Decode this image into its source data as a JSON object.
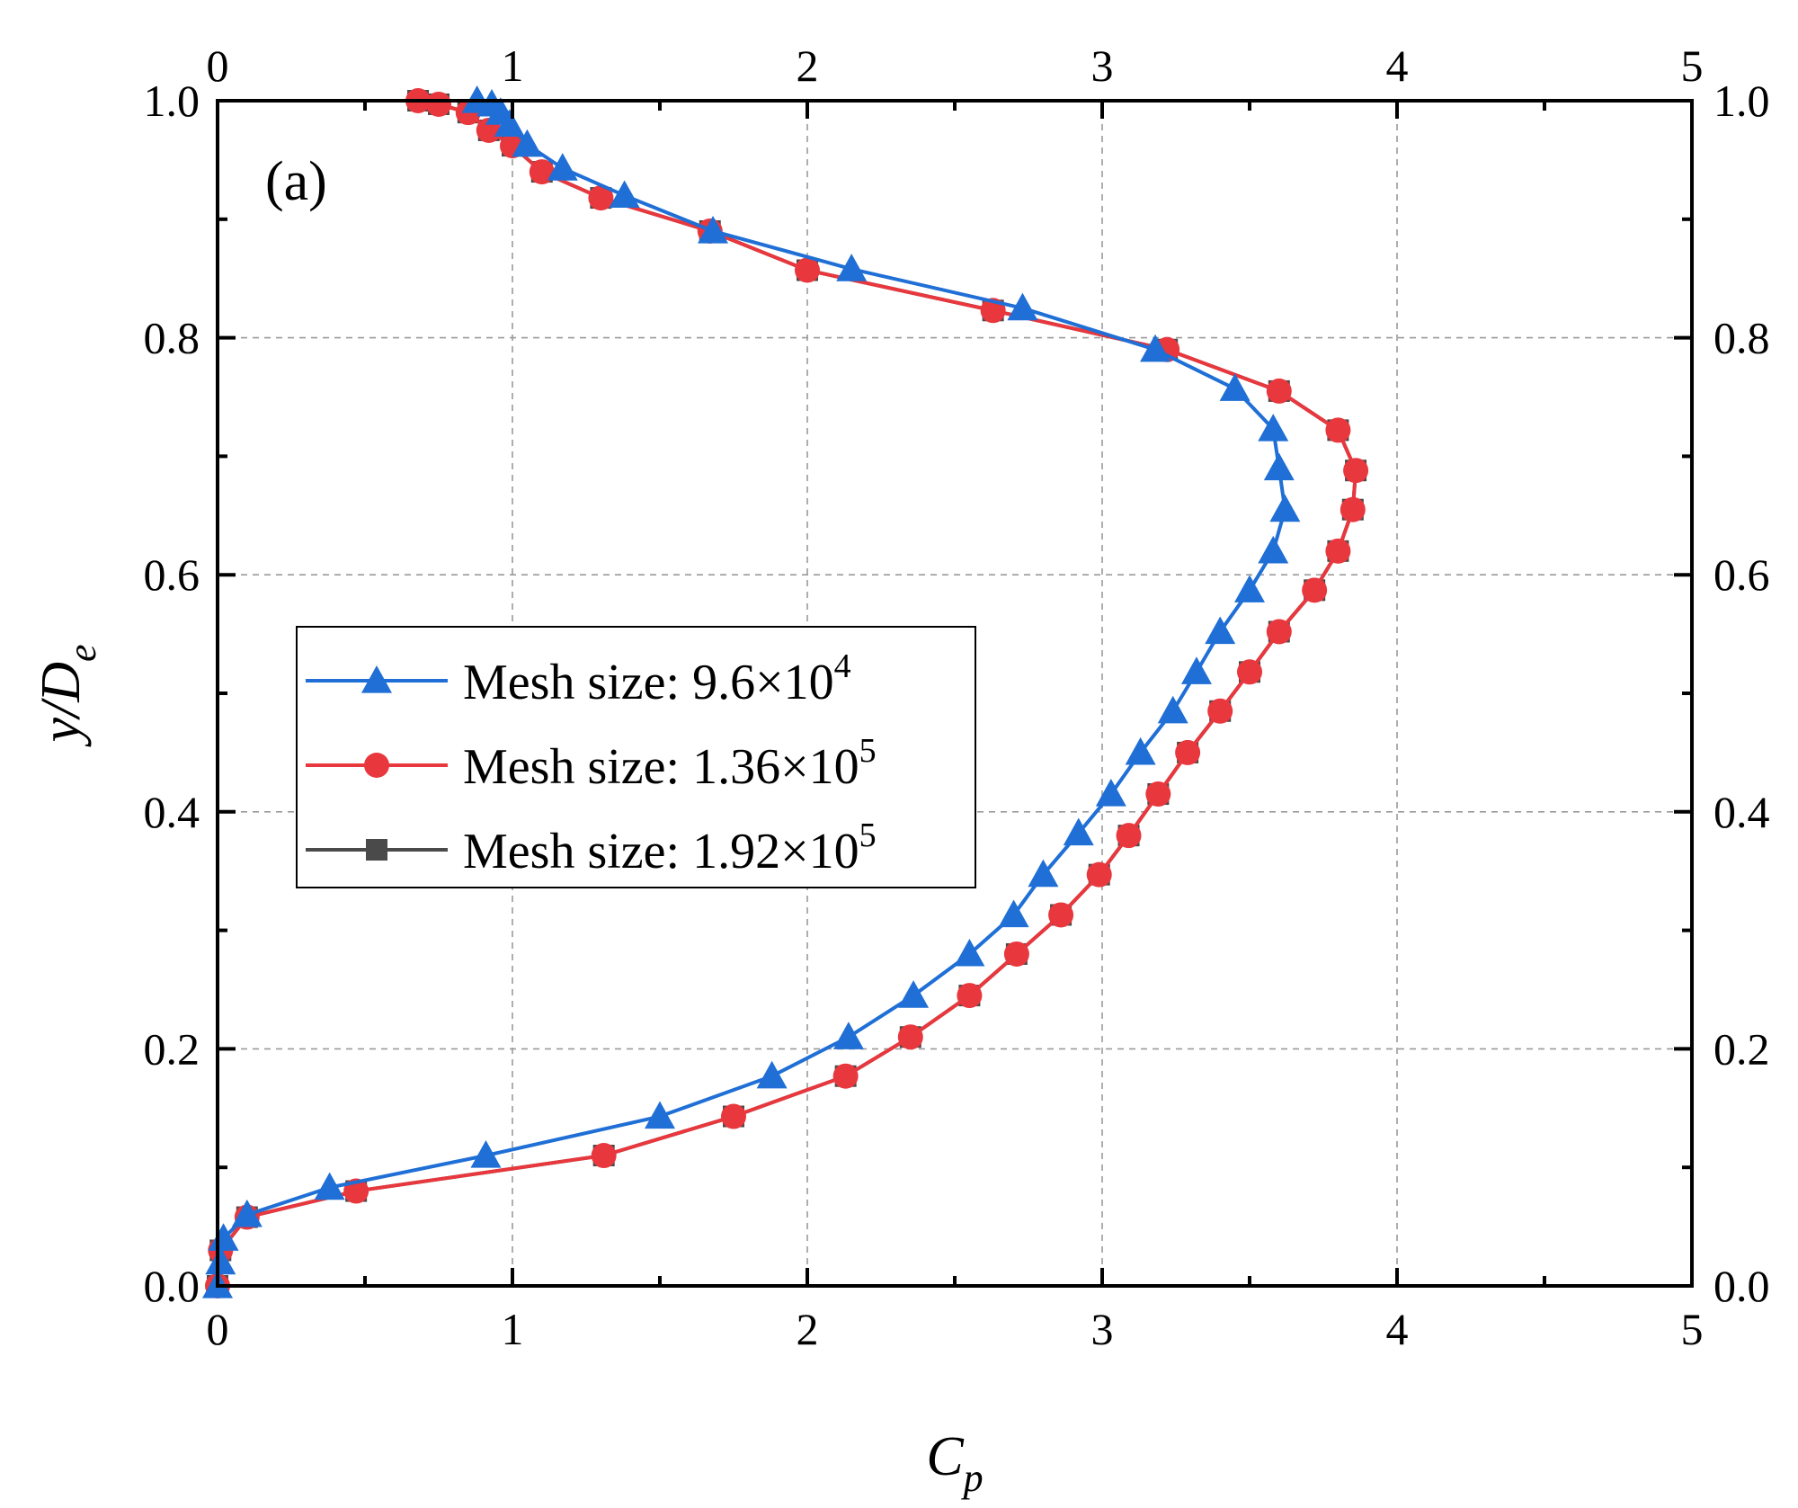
{
  "chart_data": {
    "type": "line",
    "panel_label": "(a)",
    "xlabel": "C",
    "xlabel_sub": "p",
    "ylabel": "y/D",
    "ylabel_sub": "e",
    "xlim": [
      0,
      5
    ],
    "ylim": [
      0,
      1.0
    ],
    "x_ticks": [
      0,
      1,
      2,
      3,
      4,
      5
    ],
    "x_tick_labels": [
      "0",
      "1",
      "2",
      "3",
      "4",
      "5"
    ],
    "y_ticks": [
      0,
      0.2,
      0.4,
      0.6,
      0.8,
      1.0
    ],
    "y_tick_labels": [
      "0.0",
      "0.2",
      "0.4",
      "0.6",
      "0.8",
      "1.0"
    ],
    "grid": true,
    "legend_position": "middle-left",
    "series": [
      {
        "name": "Mesh size: 9.6×10",
        "name_sup": "4",
        "color": "#1f6fd6",
        "marker": "triangle",
        "x": [
          0.0,
          0.01,
          0.02,
          0.1,
          0.38,
          0.91,
          1.5,
          1.88,
          2.14,
          2.36,
          2.55,
          2.7,
          2.8,
          2.92,
          3.03,
          3.13,
          3.24,
          3.32,
          3.4,
          3.5,
          3.58,
          3.62,
          3.6,
          3.58,
          3.45,
          3.18,
          2.73,
          2.15,
          1.68,
          1.38,
          1.17,
          1.05,
          0.99,
          0.96,
          0.93,
          0.88
        ],
        "y": [
          0.0,
          0.02,
          0.04,
          0.06,
          0.083,
          0.11,
          0.143,
          0.177,
          0.21,
          0.245,
          0.28,
          0.313,
          0.347,
          0.382,
          0.415,
          0.45,
          0.485,
          0.518,
          0.552,
          0.587,
          0.62,
          0.655,
          0.69,
          0.723,
          0.757,
          0.79,
          0.825,
          0.858,
          0.89,
          0.92,
          0.943,
          0.963,
          0.98,
          0.99,
          0.997,
          1.0
        ]
      },
      {
        "name": "Mesh size: 1.36×10",
        "name_sup": "5",
        "color": "#e8373d",
        "marker": "circle",
        "x": [
          0.0,
          0.01,
          0.1,
          0.47,
          1.31,
          1.75,
          2.13,
          2.35,
          2.55,
          2.71,
          2.86,
          2.99,
          3.09,
          3.19,
          3.29,
          3.4,
          3.5,
          3.6,
          3.72,
          3.8,
          3.85,
          3.86,
          3.8,
          3.6,
          3.22,
          2.63,
          2.0,
          1.67,
          1.3,
          1.1,
          1.0,
          0.92,
          0.85,
          0.75,
          0.68
        ],
        "y": [
          0.0,
          0.03,
          0.058,
          0.08,
          0.11,
          0.143,
          0.177,
          0.21,
          0.245,
          0.28,
          0.313,
          0.347,
          0.38,
          0.415,
          0.45,
          0.485,
          0.518,
          0.552,
          0.587,
          0.62,
          0.655,
          0.688,
          0.722,
          0.755,
          0.79,
          0.823,
          0.857,
          0.89,
          0.918,
          0.94,
          0.962,
          0.975,
          0.99,
          0.997,
          1.0
        ]
      },
      {
        "name": "Mesh size: 1.92×10",
        "name_sup": "5",
        "color": "#4a4a4a",
        "marker": "square",
        "x": [
          0.0,
          0.01,
          0.1,
          0.47,
          1.31,
          1.75,
          2.13,
          2.35,
          2.55,
          2.71,
          2.86,
          2.99,
          3.09,
          3.19,
          3.29,
          3.4,
          3.5,
          3.6,
          3.72,
          3.8,
          3.85,
          3.86,
          3.8,
          3.6,
          3.22,
          2.63,
          2.0,
          1.67,
          1.3,
          1.1,
          1.0,
          0.92,
          0.85,
          0.75,
          0.68
        ],
        "y": [
          0.0,
          0.03,
          0.058,
          0.08,
          0.11,
          0.143,
          0.177,
          0.21,
          0.245,
          0.28,
          0.313,
          0.347,
          0.38,
          0.415,
          0.45,
          0.485,
          0.518,
          0.552,
          0.587,
          0.62,
          0.655,
          0.688,
          0.722,
          0.755,
          0.79,
          0.823,
          0.857,
          0.89,
          0.918,
          0.94,
          0.962,
          0.975,
          0.99,
          0.997,
          1.0
        ]
      }
    ]
  }
}
